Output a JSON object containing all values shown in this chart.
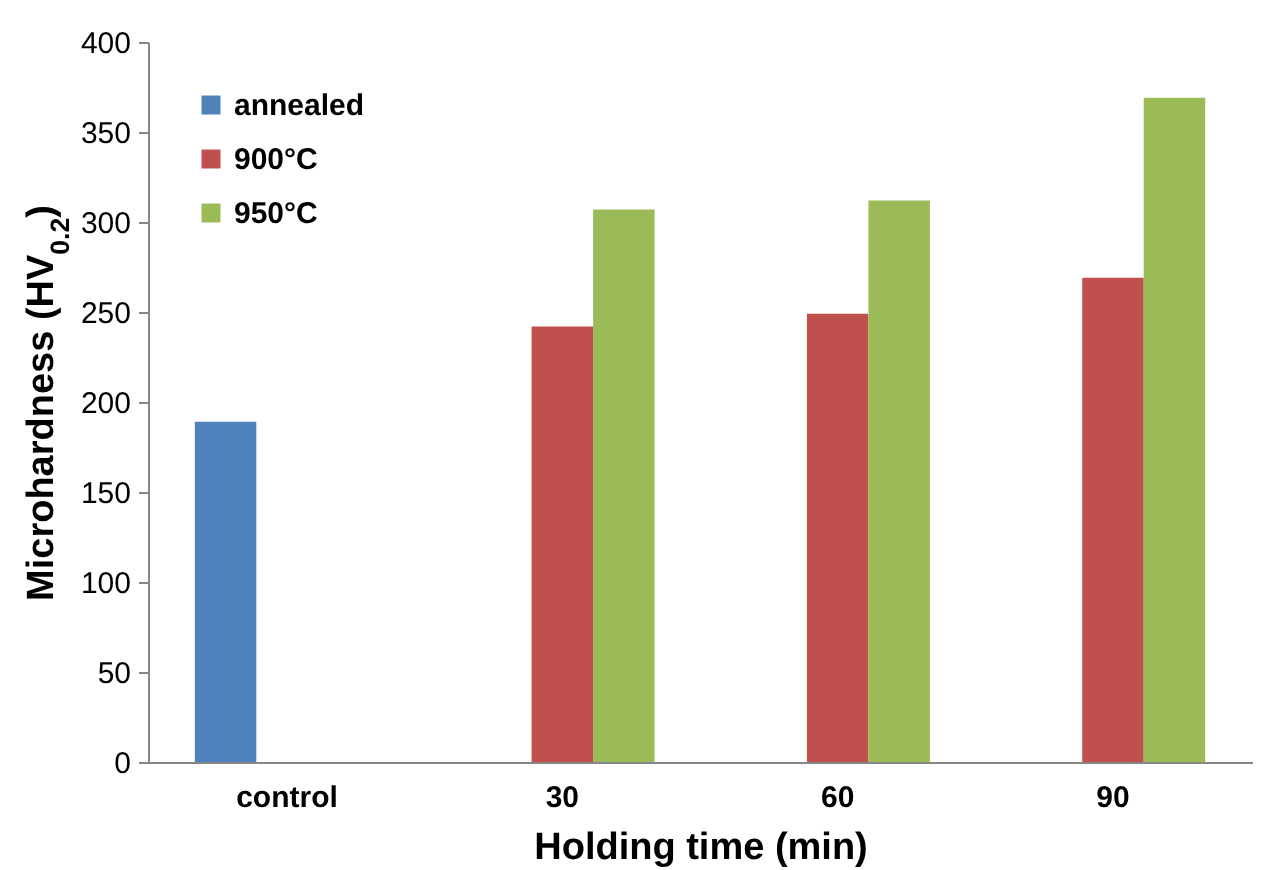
{
  "chart_data": {
    "type": "bar",
    "xlabel": "Holding time (min)",
    "ylabel": "Microhardness (HV$_{0.2}$)",
    "categories": [
      "control",
      "30",
      "60",
      "90"
    ],
    "series": [
      {
        "name": "annealed",
        "color": "#4f81bd",
        "values": [
          189,
          null,
          null,
          null
        ]
      },
      {
        "name": "900°C",
        "color": "#c0504d",
        "values": [
          null,
          242,
          249,
          269
        ]
      },
      {
        "name": "950°C",
        "color": "#9bbb59",
        "values": [
          null,
          307,
          312,
          369
        ]
      }
    ],
    "ylim": [
      0,
      400
    ],
    "yticks": [
      0,
      50,
      100,
      150,
      200,
      250,
      300,
      350,
      400
    ],
    "grid": false,
    "legend": "top left"
  }
}
